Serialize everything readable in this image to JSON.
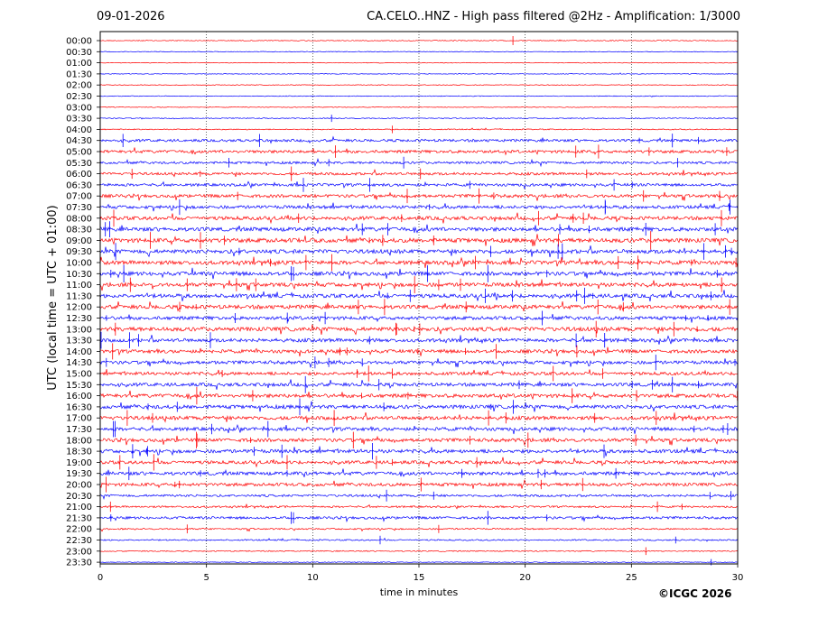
{
  "header": {
    "date": "09-01-2026",
    "title": "CA.CELO..HNZ - High pass filtered @2Hz - Amplification: 1/3000"
  },
  "footer": {
    "copyright": "©ICGC 2026"
  },
  "colors": {
    "trace_a": "#ff0000",
    "trace_b": "#0000ff",
    "gridline": "#000000",
    "axis": "#000000"
  },
  "chart_data": {
    "type": "line",
    "title": "CA.CELO..HNZ - High pass filtered @2Hz - Amplification: 1/3000",
    "xlabel": "time in minutes",
    "ylabel": "UTC (local time = UTC + 01:00)",
    "xlim": [
      0,
      30
    ],
    "xticks": [
      0,
      5,
      10,
      15,
      20,
      25,
      30
    ],
    "vertical_gridlines": [
      5,
      10,
      15,
      20,
      25
    ],
    "rows": [
      {
        "label": "00:00",
        "level": 0.2
      },
      {
        "label": "00:30",
        "level": 0.1
      },
      {
        "label": "01:00",
        "level": 0.1
      },
      {
        "label": "01:30",
        "level": 0.1
      },
      {
        "label": "02:00",
        "level": 0.1
      },
      {
        "label": "02:30",
        "level": 0.15
      },
      {
        "label": "03:00",
        "level": 0.1
      },
      {
        "label": "03:30",
        "level": 0.3
      },
      {
        "label": "04:00",
        "level": 0.4
      },
      {
        "label": "04:30",
        "level": 1.6
      },
      {
        "label": "05:00",
        "level": 1.8
      },
      {
        "label": "05:30",
        "level": 1.4
      },
      {
        "label": "06:00",
        "level": 1.6
      },
      {
        "label": "06:30",
        "level": 1.7
      },
      {
        "label": "07:00",
        "level": 2.0
      },
      {
        "label": "07:30",
        "level": 2.0
      },
      {
        "label": "08:00",
        "level": 2.3
      },
      {
        "label": "08:30",
        "level": 2.6
      },
      {
        "label": "09:00",
        "level": 2.8
      },
      {
        "label": "09:30",
        "level": 2.6
      },
      {
        "label": "10:00",
        "level": 2.6
      },
      {
        "label": "10:30",
        "level": 2.5
      },
      {
        "label": "11:00",
        "level": 2.5
      },
      {
        "label": "11:30",
        "level": 2.5
      },
      {
        "label": "12:00",
        "level": 2.6
      },
      {
        "label": "12:30",
        "level": 2.2
      },
      {
        "label": "13:00",
        "level": 2.7
      },
      {
        "label": "13:30",
        "level": 2.3
      },
      {
        "label": "14:00",
        "level": 2.2
      },
      {
        "label": "14:30",
        "level": 2.1
      },
      {
        "label": "15:00",
        "level": 2.0
      },
      {
        "label": "15:30",
        "level": 2.2
      },
      {
        "label": "16:00",
        "level": 2.4
      },
      {
        "label": "16:30",
        "level": 2.4
      },
      {
        "label": "17:00",
        "level": 2.4
      },
      {
        "label": "17:30",
        "level": 2.2
      },
      {
        "label": "18:00",
        "level": 2.2
      },
      {
        "label": "18:30",
        "level": 2.3
      },
      {
        "label": "19:00",
        "level": 2.1
      },
      {
        "label": "19:30",
        "level": 2.2
      },
      {
        "label": "20:00",
        "level": 2.0
      },
      {
        "label": "20:30",
        "level": 1.3
      },
      {
        "label": "21:00",
        "level": 1.0
      },
      {
        "label": "21:30",
        "level": 1.5
      },
      {
        "label": "22:00",
        "level": 0.7
      },
      {
        "label": "22:30",
        "level": 0.6
      },
      {
        "label": "23:00",
        "level": 0.4
      },
      {
        "label": "23:30",
        "level": 0.2
      }
    ]
  }
}
